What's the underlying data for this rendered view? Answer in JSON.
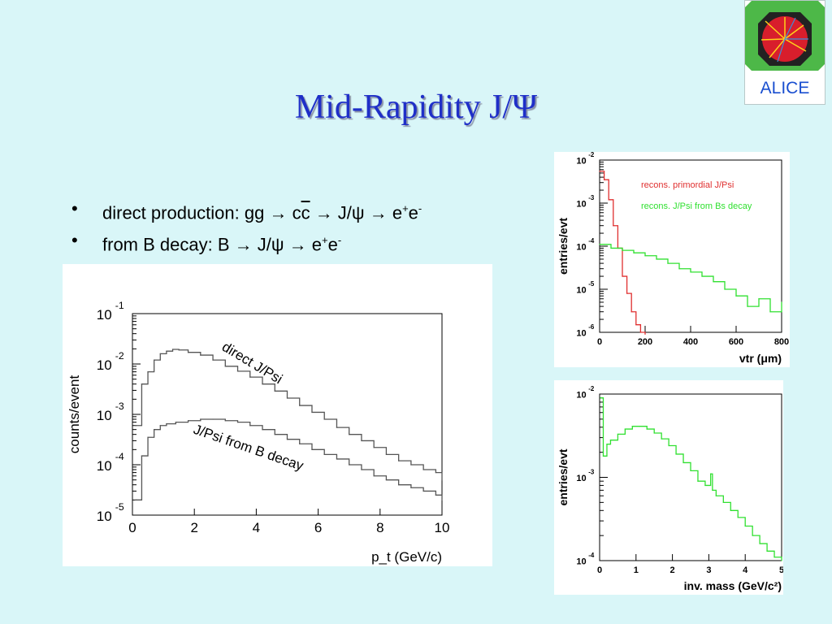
{
  "title": {
    "main": "Mid-Rapidity J/Ψ"
  },
  "logo": {
    "text": "ALICE"
  },
  "bullets": {
    "b1": {
      "p1": "direct production: gg → c",
      "p2": "c",
      "p3": " → J/ψ  → e",
      "sup1": "+",
      "mid": "e",
      "sup2": "-"
    },
    "b2": {
      "p1": "from B decay: B → J/ψ  → e",
      "sup1": "+",
      "mid": "e",
      "sup2": "-"
    }
  },
  "chart_data": [
    {
      "type": "line",
      "xlabel": "p_t (GeV/c)",
      "ylabel": "counts/event",
      "xlim": [
        0,
        10
      ],
      "ylim_log10": [
        -5,
        -1
      ],
      "x_ticks": [
        "0",
        "2",
        "4",
        "6",
        "8",
        "10"
      ],
      "y_ticks_exp": [
        "-1",
        "-2",
        "-3",
        "-4",
        "-5"
      ],
      "annotations": [
        "direct J/Psi",
        "J/Psi from B decay"
      ],
      "series": [
        {
          "name": "direct J/Psi",
          "x": [
            0.1,
            0.3,
            0.5,
            0.7,
            0.9,
            1.1,
            1.3,
            1.5,
            1.8,
            2.2,
            2.6,
            3.0,
            3.4,
            3.8,
            4.2,
            4.6,
            5.0,
            5.4,
            5.8,
            6.2,
            6.6,
            7.0,
            7.4,
            7.8,
            8.2,
            8.6,
            9.0,
            9.4,
            9.8,
            10.0
          ],
          "y": [
            0.0006,
            0.004,
            0.007,
            0.012,
            0.016,
            0.018,
            0.0195,
            0.019,
            0.017,
            0.015,
            0.012,
            0.009,
            0.0072,
            0.0055,
            0.004,
            0.0029,
            0.0021,
            0.0015,
            0.0011,
            0.0008,
            0.00055,
            0.0004,
            0.0003,
            0.00022,
            0.00016,
            0.00012,
            0.0001,
            8e-05,
            7e-05,
            5e-05
          ]
        },
        {
          "name": "J/Psi from B decay",
          "x": [
            0.1,
            0.3,
            0.5,
            0.7,
            0.9,
            1.1,
            1.4,
            1.8,
            2.2,
            2.6,
            3.0,
            3.4,
            3.8,
            4.2,
            4.6,
            5.0,
            5.4,
            5.8,
            6.2,
            6.6,
            7.0,
            7.4,
            7.8,
            8.2,
            8.6,
            9.0,
            9.4,
            9.8,
            10.0
          ],
          "y": [
            2e-05,
            0.00015,
            0.00035,
            0.0005,
            0.0006,
            0.00065,
            0.0007,
            0.00075,
            0.0008,
            0.0008,
            0.00075,
            0.0007,
            0.0006,
            0.0005,
            0.0004,
            0.00032,
            0.00026,
            0.0002,
            0.00016,
            0.00013,
            0.0001,
            8e-05,
            6e-05,
            5e-05,
            4e-05,
            3.5e-05,
            3e-05,
            2.5e-05,
            2e-05
          ]
        }
      ]
    },
    {
      "type": "line",
      "xlabel": "vtr (μm)",
      "ylabel": "entries/evt",
      "xlim": [
        0,
        800
      ],
      "ylim_log10": [
        -6,
        -2
      ],
      "x_ticks": [
        "0",
        "200",
        "400",
        "600",
        "800"
      ],
      "y_ticks_exp": [
        "-2",
        "-3",
        "-4",
        "-5",
        "-6"
      ],
      "legend_position": "top-right",
      "series": [
        {
          "name": "recons. primordial J/Psi",
          "color": "#e03030",
          "x": [
            0,
            20,
            40,
            60,
            80,
            100,
            120,
            140,
            160,
            180,
            200
          ],
          "y": [
            0.0055,
            0.0035,
            0.0012,
            0.0003,
            9e-05,
            2e-05,
            8e-06,
            3e-06,
            1.5e-06,
            1e-06,
            9e-07
          ]
        },
        {
          "name": "recons. J/Psi from Bs decay",
          "color": "#30e030",
          "x": [
            0,
            50,
            100,
            150,
            200,
            250,
            300,
            350,
            400,
            450,
            500,
            550,
            600,
            650,
            700,
            750,
            800
          ],
          "y": [
            0.00011,
            9e-05,
            8e-05,
            7e-05,
            6e-05,
            5e-05,
            4e-05,
            3e-05,
            2.5e-05,
            2e-05,
            1.5e-05,
            1e-05,
            7e-06,
            4e-06,
            6e-06,
            3e-06,
            5e-06
          ]
        }
      ]
    },
    {
      "type": "line",
      "xlabel": "inv. mass (GeV/c²)",
      "ylabel": "entries/evt",
      "xlim": [
        0,
        5
      ],
      "ylim_log10": [
        -4,
        -2
      ],
      "x_ticks": [
        "0",
        "1",
        "2",
        "3",
        "4",
        "5"
      ],
      "y_ticks_exp": [
        "-2",
        "-3",
        "-4"
      ],
      "series": [
        {
          "name": "",
          "color": "#30e030",
          "x": [
            0.02,
            0.1,
            0.2,
            0.3,
            0.5,
            0.7,
            0.9,
            1.1,
            1.3,
            1.5,
            1.7,
            1.9,
            2.1,
            2.3,
            2.5,
            2.7,
            2.9,
            3.05,
            3.1,
            3.2,
            3.4,
            3.6,
            3.8,
            4.0,
            4.2,
            4.4,
            4.6,
            4.8,
            5.0
          ],
          "y": [
            0.009,
            0.0018,
            0.0025,
            0.0028,
            0.0033,
            0.0038,
            0.0041,
            0.0041,
            0.0038,
            0.0034,
            0.0029,
            0.0024,
            0.0019,
            0.0015,
            0.0012,
            0.0009,
            0.0008,
            0.0011,
            0.0007,
            0.0006,
            0.0005,
            0.0004,
            0.00033,
            0.00026,
            0.0002,
            0.00016,
            0.00013,
            0.00011,
            0.0001
          ]
        }
      ]
    }
  ]
}
